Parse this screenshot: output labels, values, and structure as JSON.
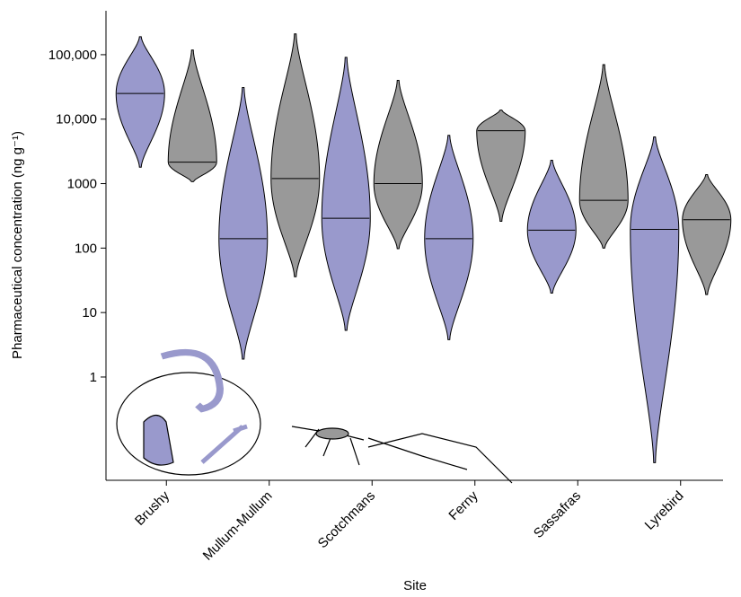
{
  "chart_data": {
    "type": "violin",
    "y_label": "Pharmaceutical concentration (ng g⁻¹)",
    "x_label": "Site",
    "log_y": true,
    "categories": [
      "Brushy",
      "Mullum-Mullum",
      "Scotchmans",
      "Ferny",
      "Sassafras",
      "Lyrebird"
    ],
    "series": [
      {
        "color": "#9999cc",
        "values": [
          [
            1800,
            25000,
            190000
          ],
          [
            1.9,
            140,
            31000
          ],
          [
            5.3,
            290,
            91000
          ],
          [
            3.8,
            140,
            5600
          ],
          [
            20,
            190,
            2300
          ],
          [
            0.047,
            195,
            5300
          ]
        ]
      },
      {
        "color": "#999999",
        "values": [
          [
            1070,
            2150,
            118000
          ],
          [
            36,
            1200,
            210000
          ],
          [
            98,
            1000,
            40000
          ],
          [
            260,
            6600,
            13800
          ],
          [
            100,
            550,
            70000
          ],
          [
            19,
            275,
            1380
          ]
        ]
      }
    ],
    "ylim": [
      0.025,
      480000
    ],
    "yticks": [
      1,
      10,
      100,
      1000,
      {
        "value": 10000,
        "label": "10,000"
      },
      {
        "value": 100000,
        "label": "100,000"
      }
    ]
  }
}
